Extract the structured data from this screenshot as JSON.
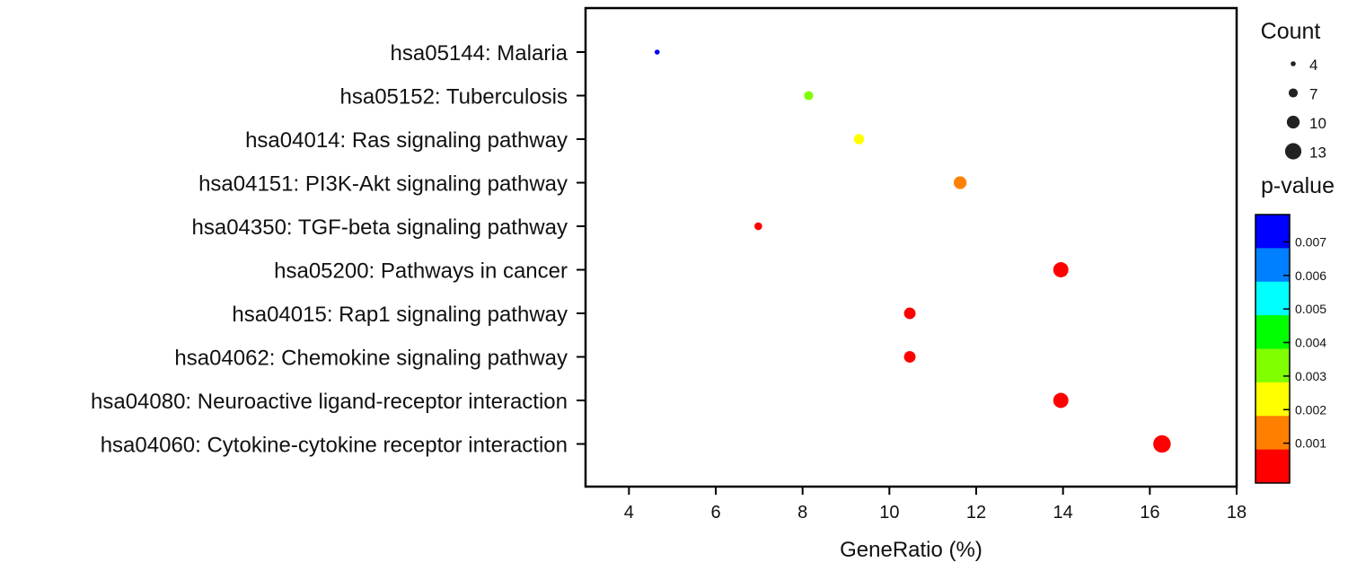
{
  "chart_data": {
    "type": "scatter",
    "title": "",
    "xlabel": "GeneRatio (%)",
    "ylabel": "",
    "xlim": [
      3,
      18
    ],
    "xticks": [
      4,
      6,
      8,
      10,
      12,
      14,
      16,
      18
    ],
    "grid": false,
    "points": [
      {
        "term": "hsa05144: Malaria",
        "gene_ratio": 4.65,
        "count": 4,
        "color": "#0000ff"
      },
      {
        "term": "hsa05152: Tuberculosis",
        "gene_ratio": 8.14,
        "count": 7,
        "color": "#80ff00"
      },
      {
        "term": "hsa04014: Ras signaling pathway",
        "gene_ratio": 9.3,
        "count": 8,
        "color": "#ffff00"
      },
      {
        "term": "hsa04151: PI3K-Akt signaling pathway",
        "gene_ratio": 11.63,
        "count": 10,
        "color": "#ff8000"
      },
      {
        "term": "hsa04350: TGF-beta signaling pathway",
        "gene_ratio": 6.98,
        "count": 6,
        "color": "#ff0000"
      },
      {
        "term": "hsa05200: Pathways in cancer",
        "gene_ratio": 13.95,
        "count": 12,
        "color": "#ff0000"
      },
      {
        "term": "hsa04015: Rap1 signaling pathway",
        "gene_ratio": 10.47,
        "count": 9,
        "color": "#ff0000"
      },
      {
        "term": "hsa04062: Chemokine signaling pathway",
        "gene_ratio": 10.47,
        "count": 9,
        "color": "#ff0000"
      },
      {
        "term": "hsa04080: Neuroactive ligand-receptor interaction",
        "gene_ratio": 13.95,
        "count": 12,
        "color": "#ff0000"
      },
      {
        "term": "hsa04060: Cytokine-cytokine receptor interaction",
        "gene_ratio": 16.28,
        "count": 14,
        "color": "#ff0000"
      }
    ],
    "size_legend": {
      "title": "Count",
      "values": [
        4,
        7,
        10,
        13
      ]
    },
    "color_legend": {
      "title": "p-value",
      "labels": [
        "0.007",
        "0.006",
        "0.005",
        "0.004",
        "0.003",
        "0.002",
        "0.001"
      ],
      "colors": [
        "#0000ff",
        "#0080ff",
        "#00ffff",
        "#00ff00",
        "#80ff00",
        "#ffff00",
        "#ff8000",
        "#ff0000"
      ]
    }
  }
}
